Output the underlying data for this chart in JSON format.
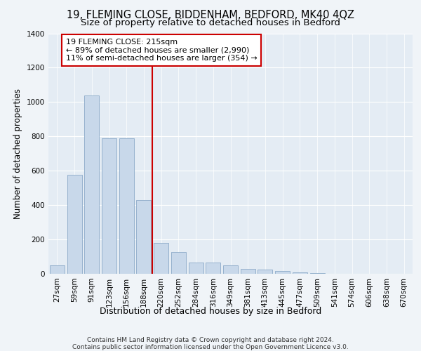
{
  "title1": "19, FLEMING CLOSE, BIDDENHAM, BEDFORD, MK40 4QZ",
  "title2": "Size of property relative to detached houses in Bedford",
  "xlabel": "Distribution of detached houses by size in Bedford",
  "ylabel": "Number of detached properties",
  "categories": [
    "27sqm",
    "59sqm",
    "91sqm",
    "123sqm",
    "156sqm",
    "188sqm",
    "220sqm",
    "252sqm",
    "284sqm",
    "316sqm",
    "349sqm",
    "381sqm",
    "413sqm",
    "445sqm",
    "477sqm",
    "509sqm",
    "541sqm",
    "574sqm",
    "606sqm",
    "638sqm",
    "670sqm"
  ],
  "values": [
    50,
    575,
    1040,
    790,
    790,
    430,
    180,
    125,
    65,
    65,
    50,
    27,
    25,
    18,
    10,
    3,
    0,
    0,
    0,
    0,
    0
  ],
  "bar_color": "#c8d8ea",
  "bar_edge_color": "#8baac8",
  "vline_color": "#cc0000",
  "annotation_line1": "19 FLEMING CLOSE: 215sqm",
  "annotation_line2": "← 89% of detached houses are smaller (2,990)",
  "annotation_line3": "11% of semi-detached houses are larger (354) →",
  "annotation_box_edge_color": "#cc0000",
  "ylim": [
    0,
    1400
  ],
  "yticks": [
    0,
    200,
    400,
    600,
    800,
    1000,
    1200,
    1400
  ],
  "fig_bg_color": "#f0f4f8",
  "plot_bg_color": "#e4ecf4",
  "grid_color": "#ffffff",
  "title1_fontsize": 10.5,
  "title2_fontsize": 9.5,
  "xlabel_fontsize": 9,
  "ylabel_fontsize": 8.5,
  "tick_fontsize": 7.5,
  "annotation_fontsize": 8,
  "footer_fontsize": 6.5,
  "footer_text": "Contains HM Land Registry data © Crown copyright and database right 2024.\nContains public sector information licensed under the Open Government Licence v3.0.",
  "vline_index": 6
}
